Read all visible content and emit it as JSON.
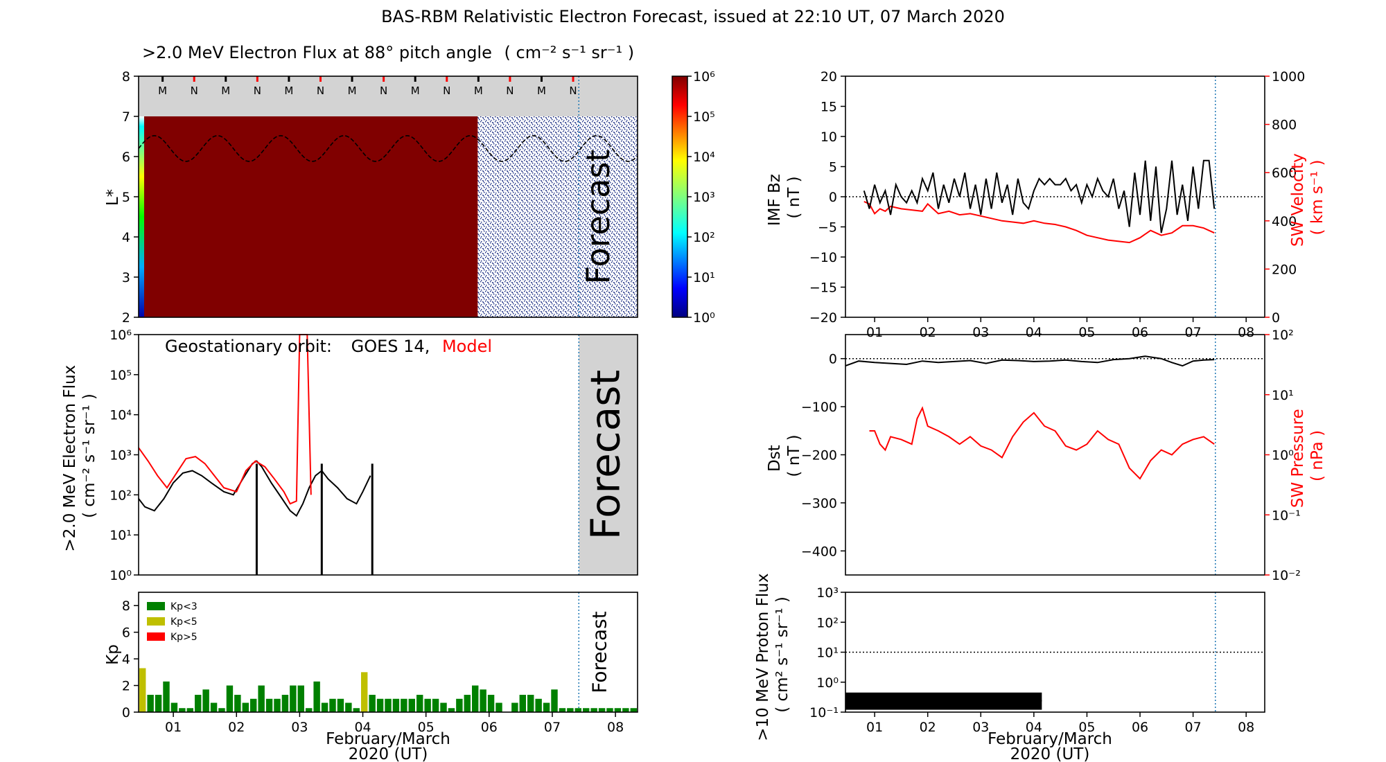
{
  "figure": {
    "title": "BAS-RBM Relativistic Electron Forecast, issued at 22:10 UT, 07 March 2020",
    "xlabel_line1": "February/March",
    "xlabel_line2": "2020 (UT)",
    "date_ticks": [
      "01",
      "02",
      "03",
      "04",
      "05",
      "06",
      "07",
      "08"
    ],
    "forecast_label": "Forecast"
  },
  "colors": {
    "model": "#ff0000",
    "observed": "#000000",
    "flux_dark": "#800000",
    "kp_low": "#008000",
    "kp_mid": "#bfbf00",
    "kp_high": "#ff0000",
    "forecast_bg": "#d3d3d3",
    "issue_line": "#1f77b4"
  },
  "chart_data": [
    {
      "type": "heatmap",
      "id": "lstar_flux",
      "title_text": ">2.0 MeV Electron Flux at 88° pitch angle",
      "title_units": "( cm⁻² s⁻¹ sr⁻¹ )",
      "ylabel": "L*",
      "ylim": [
        2,
        8
      ],
      "yticks": [
        "2",
        "3",
        "4",
        "5",
        "6",
        "7",
        "8"
      ],
      "xlim": [
        0.45,
        8.35
      ],
      "issue_time": 7.42,
      "model_region_end": 5.82,
      "no_data_band": [
        7,
        8
      ],
      "markers": [
        "M",
        "N",
        "M",
        "N",
        "M",
        "N",
        "M",
        "N",
        "M",
        "N",
        "M",
        "N",
        "M",
        "N"
      ],
      "marker_times": [
        0.83,
        1.33,
        1.83,
        2.33,
        2.83,
        3.33,
        3.83,
        4.33,
        4.83,
        5.33,
        5.83,
        6.33,
        6.83,
        7.33
      ],
      "colorbar_labels": [
        "10⁰",
        "10¹",
        "10²",
        "10³",
        "10⁴",
        "10⁵",
        "10⁶"
      ],
      "colorbar_range_log10": [
        0,
        6
      ],
      "plasmapause_Lstar_approx": 6.2
    },
    {
      "type": "line",
      "id": "geo_flux",
      "annotation": "Geostationary orbit:",
      "obs_name": "GOES 14,",
      "model_name": "Model",
      "ylabel_line1": ">2.0 MeV Electron Flux",
      "ylabel_line2": "( cm⁻² s⁻¹ sr⁻¹ )",
      "ylim_log10": [
        0,
        6
      ],
      "ytick_labels": [
        "10⁰",
        "10¹",
        "10²",
        "10³",
        "10⁴",
        "10⁵",
        "10⁶"
      ],
      "series": [
        {
          "name": "GOES 14",
          "x": [
            0.45,
            0.55,
            0.7,
            0.85,
            1.0,
            1.15,
            1.3,
            1.45,
            1.6,
            1.8,
            1.95,
            2.1,
            2.25,
            2.32,
            2.4,
            2.55,
            2.7,
            2.85,
            2.95,
            3.05,
            3.15,
            3.25,
            3.35,
            3.45,
            3.6,
            3.75,
            3.9,
            4.0,
            4.12
          ],
          "y": [
            80,
            50,
            40,
            80,
            200,
            350,
            400,
            300,
            200,
            120,
            100,
            250,
            600,
            700,
            500,
            200,
            90,
            40,
            30,
            60,
            150,
            300,
            400,
            250,
            150,
            80,
            60,
            120,
            300
          ]
        },
        {
          "name": "Model",
          "x": [
            0.45,
            0.6,
            0.75,
            0.9,
            1.05,
            1.2,
            1.35,
            1.5,
            1.65,
            1.8,
            2.0,
            2.15,
            2.3,
            2.45,
            2.6,
            2.75,
            2.85,
            2.95,
            3.0,
            3.05,
            3.12,
            3.18
          ],
          "y": [
            1500,
            700,
            300,
            150,
            350,
            800,
            900,
            600,
            300,
            150,
            120,
            400,
            700,
            500,
            250,
            120,
            60,
            70,
            1000000,
            1000000,
            1000000,
            100
          ]
        }
      ]
    },
    {
      "type": "bar",
      "id": "kp",
      "ylabel": "Kp",
      "ylim": [
        0,
        9
      ],
      "yticks": [
        "0",
        "2",
        "4",
        "6",
        "8"
      ],
      "legend": [
        "Kp<3",
        "Kp<5",
        "Kp>5"
      ],
      "values": [
        3.3,
        1.3,
        1.3,
        2.3,
        0.7,
        0.3,
        0.3,
        1.3,
        1.7,
        0.7,
        0.3,
        2.0,
        1.3,
        0.7,
        1.0,
        2.0,
        1.0,
        1.0,
        1.3,
        2.0,
        2.0,
        0.3,
        2.3,
        0.7,
        1.0,
        1.0,
        0.7,
        0.3,
        3.0,
        1.3,
        1.0,
        1.0,
        1.0,
        1.0,
        1.0,
        1.3,
        1.0,
        1.0,
        0.7,
        0.3,
        1.0,
        1.3,
        2.0,
        1.7,
        1.3,
        0.7,
        0.0,
        0.7,
        1.3,
        1.3,
        1.0,
        0.7,
        1.7,
        0.3,
        0.3,
        0.3,
        0.3,
        0.3,
        0.3,
        0.3,
        0.3,
        0.3,
        0.3
      ]
    },
    {
      "type": "line",
      "id": "imf_sw",
      "ylabel_left_line1": "IMF Bz",
      "ylabel_left_line2": "( nT )",
      "ylabel_right_line1": "SW Velocity",
      "ylabel_right_line2": "( km s⁻¹ )",
      "ylim_left": [
        -20,
        20
      ],
      "yticks_left": [
        "20",
        "15",
        "10",
        "5",
        "0",
        "−5",
        "−10",
        "−15",
        "−20"
      ],
      "ylim_right": [
        0,
        1000
      ],
      "yticks_right": [
        "1000",
        "800",
        "600",
        "400",
        "200",
        "0"
      ],
      "series": [
        {
          "name": "IMF Bz",
          "x": [
            0.8,
            0.9,
            1.0,
            1.1,
            1.2,
            1.3,
            1.4,
            1.5,
            1.6,
            1.7,
            1.8,
            1.9,
            2.0,
            2.1,
            2.2,
            2.3,
            2.4,
            2.5,
            2.6,
            2.7,
            2.8,
            2.9,
            3.0,
            3.1,
            3.2,
            3.3,
            3.4,
            3.5,
            3.6,
            3.7,
            3.8,
            3.9,
            4.0,
            4.1,
            4.2,
            4.3,
            4.4,
            4.5,
            4.6,
            4.7,
            4.8,
            4.9,
            5.0,
            5.1,
            5.2,
            5.3,
            5.4,
            5.5,
            5.6,
            5.7,
            5.8,
            5.9,
            6.0,
            6.1,
            6.2,
            6.3,
            6.4,
            6.5,
            6.6,
            6.7,
            6.8,
            6.9,
            7.0,
            7.1,
            7.2,
            7.3,
            7.4
          ],
          "y": [
            1,
            -2,
            2,
            -1,
            1,
            -3,
            2,
            0,
            -1,
            1,
            -1,
            3,
            1,
            4,
            -2,
            2,
            -1,
            3,
            0,
            4,
            -2,
            2,
            -3,
            3,
            -2,
            4,
            -1,
            2,
            -3,
            3,
            -1,
            -2,
            1,
            3,
            2,
            3,
            2,
            2,
            3,
            1,
            2,
            -1,
            2,
            0,
            3,
            1,
            0,
            3,
            -2,
            1,
            -5,
            4,
            -3,
            6,
            -4,
            5,
            -6,
            -2,
            6,
            -3,
            2,
            -4,
            5,
            -2,
            6,
            6,
            -2
          ]
        },
        {
          "name": "SW Velocity",
          "x": [
            0.8,
            0.9,
            1.0,
            1.1,
            1.2,
            1.3,
            1.5,
            1.7,
            1.9,
            2.0,
            2.2,
            2.4,
            2.6,
            2.8,
            3.0,
            3.2,
            3.4,
            3.6,
            3.8,
            4.0,
            4.2,
            4.4,
            4.6,
            4.8,
            5.0,
            5.2,
            5.4,
            5.6,
            5.8,
            6.0,
            6.2,
            6.4,
            6.6,
            6.8,
            7.0,
            7.2,
            7.4
          ],
          "y": [
            480,
            470,
            430,
            450,
            440,
            460,
            450,
            445,
            440,
            470,
            430,
            440,
            425,
            430,
            420,
            410,
            400,
            395,
            390,
            400,
            390,
            385,
            375,
            360,
            340,
            330,
            320,
            315,
            310,
            330,
            360,
            340,
            350,
            380,
            380,
            370,
            350
          ]
        }
      ]
    },
    {
      "type": "line",
      "id": "dst_pressure",
      "ylabel_left_line1": "Dst",
      "ylabel_left_line2": "( nT )",
      "ylabel_right_line1": "SW Pressure",
      "ylabel_right_line2": "( nPa )",
      "ylim_left": [
        -450,
        50
      ],
      "yticks_left": [
        "0",
        "−100",
        "−200",
        "−300",
        "−400"
      ],
      "ylim_right_log10": [
        -2,
        2
      ],
      "yticks_right": [
        "10²",
        "10¹",
        "10⁰",
        "10⁻¹",
        "10⁻²"
      ],
      "series": [
        {
          "name": "Dst",
          "x": [
            0.45,
            0.7,
            1.0,
            1.3,
            1.6,
            1.9,
            2.2,
            2.5,
            2.8,
            3.1,
            3.4,
            3.7,
            4.0,
            4.3,
            4.6,
            4.9,
            5.2,
            5.5,
            5.8,
            6.1,
            6.4,
            6.6,
            6.8,
            7.0,
            7.2,
            7.4
          ],
          "y": [
            -15,
            -5,
            -8,
            -10,
            -12,
            -5,
            -8,
            -6,
            -4,
            -10,
            -3,
            -4,
            -6,
            -5,
            -3,
            -6,
            -8,
            -2,
            0,
            5,
            0,
            -8,
            -15,
            -5,
            -3,
            -2
          ]
        },
        {
          "name": "SW Pressure",
          "x": [
            0.9,
            1.0,
            1.1,
            1.2,
            1.3,
            1.5,
            1.7,
            1.8,
            1.9,
            2.0,
            2.2,
            2.4,
            2.6,
            2.8,
            3.0,
            3.2,
            3.4,
            3.6,
            3.8,
            4.0,
            4.2,
            4.4,
            4.6,
            4.8,
            5.0,
            5.2,
            5.4,
            5.6,
            5.8,
            6.0,
            6.2,
            6.4,
            6.6,
            6.8,
            7.0,
            7.2,
            7.4
          ],
          "y": [
            2.5,
            2.5,
            1.5,
            1.2,
            2.0,
            1.8,
            1.5,
            4.0,
            6.0,
            3.0,
            2.5,
            2.0,
            1.5,
            2.0,
            1.4,
            1.2,
            0.9,
            2.0,
            3.5,
            5.0,
            3.0,
            2.5,
            1.4,
            1.2,
            1.5,
            2.5,
            1.8,
            1.5,
            0.6,
            0.4,
            0.8,
            1.2,
            1.0,
            1.5,
            1.8,
            2.0,
            1.5
          ]
        }
      ]
    },
    {
      "type": "line",
      "id": "proton_flux",
      "ylabel_line1": ">10 MeV Proton Flux",
      "ylabel_line2": "( cm² s⁻¹ sr⁻¹ )",
      "ylim_log10": [
        -1,
        3
      ],
      "ytick_labels": [
        "10⁻¹",
        "10⁰",
        "10¹",
        "10²",
        "10³"
      ],
      "threshold": 10,
      "series": [
        {
          "name": "Proton flux",
          "x": [
            0.45,
            1.0,
            1.5,
            2.0,
            2.5,
            3.0,
            3.5,
            4.0,
            4.15
          ],
          "y": [
            0.25,
            0.22,
            0.24,
            0.23,
            0.25,
            0.24,
            0.22,
            0.25,
            0.24
          ]
        }
      ]
    }
  ]
}
